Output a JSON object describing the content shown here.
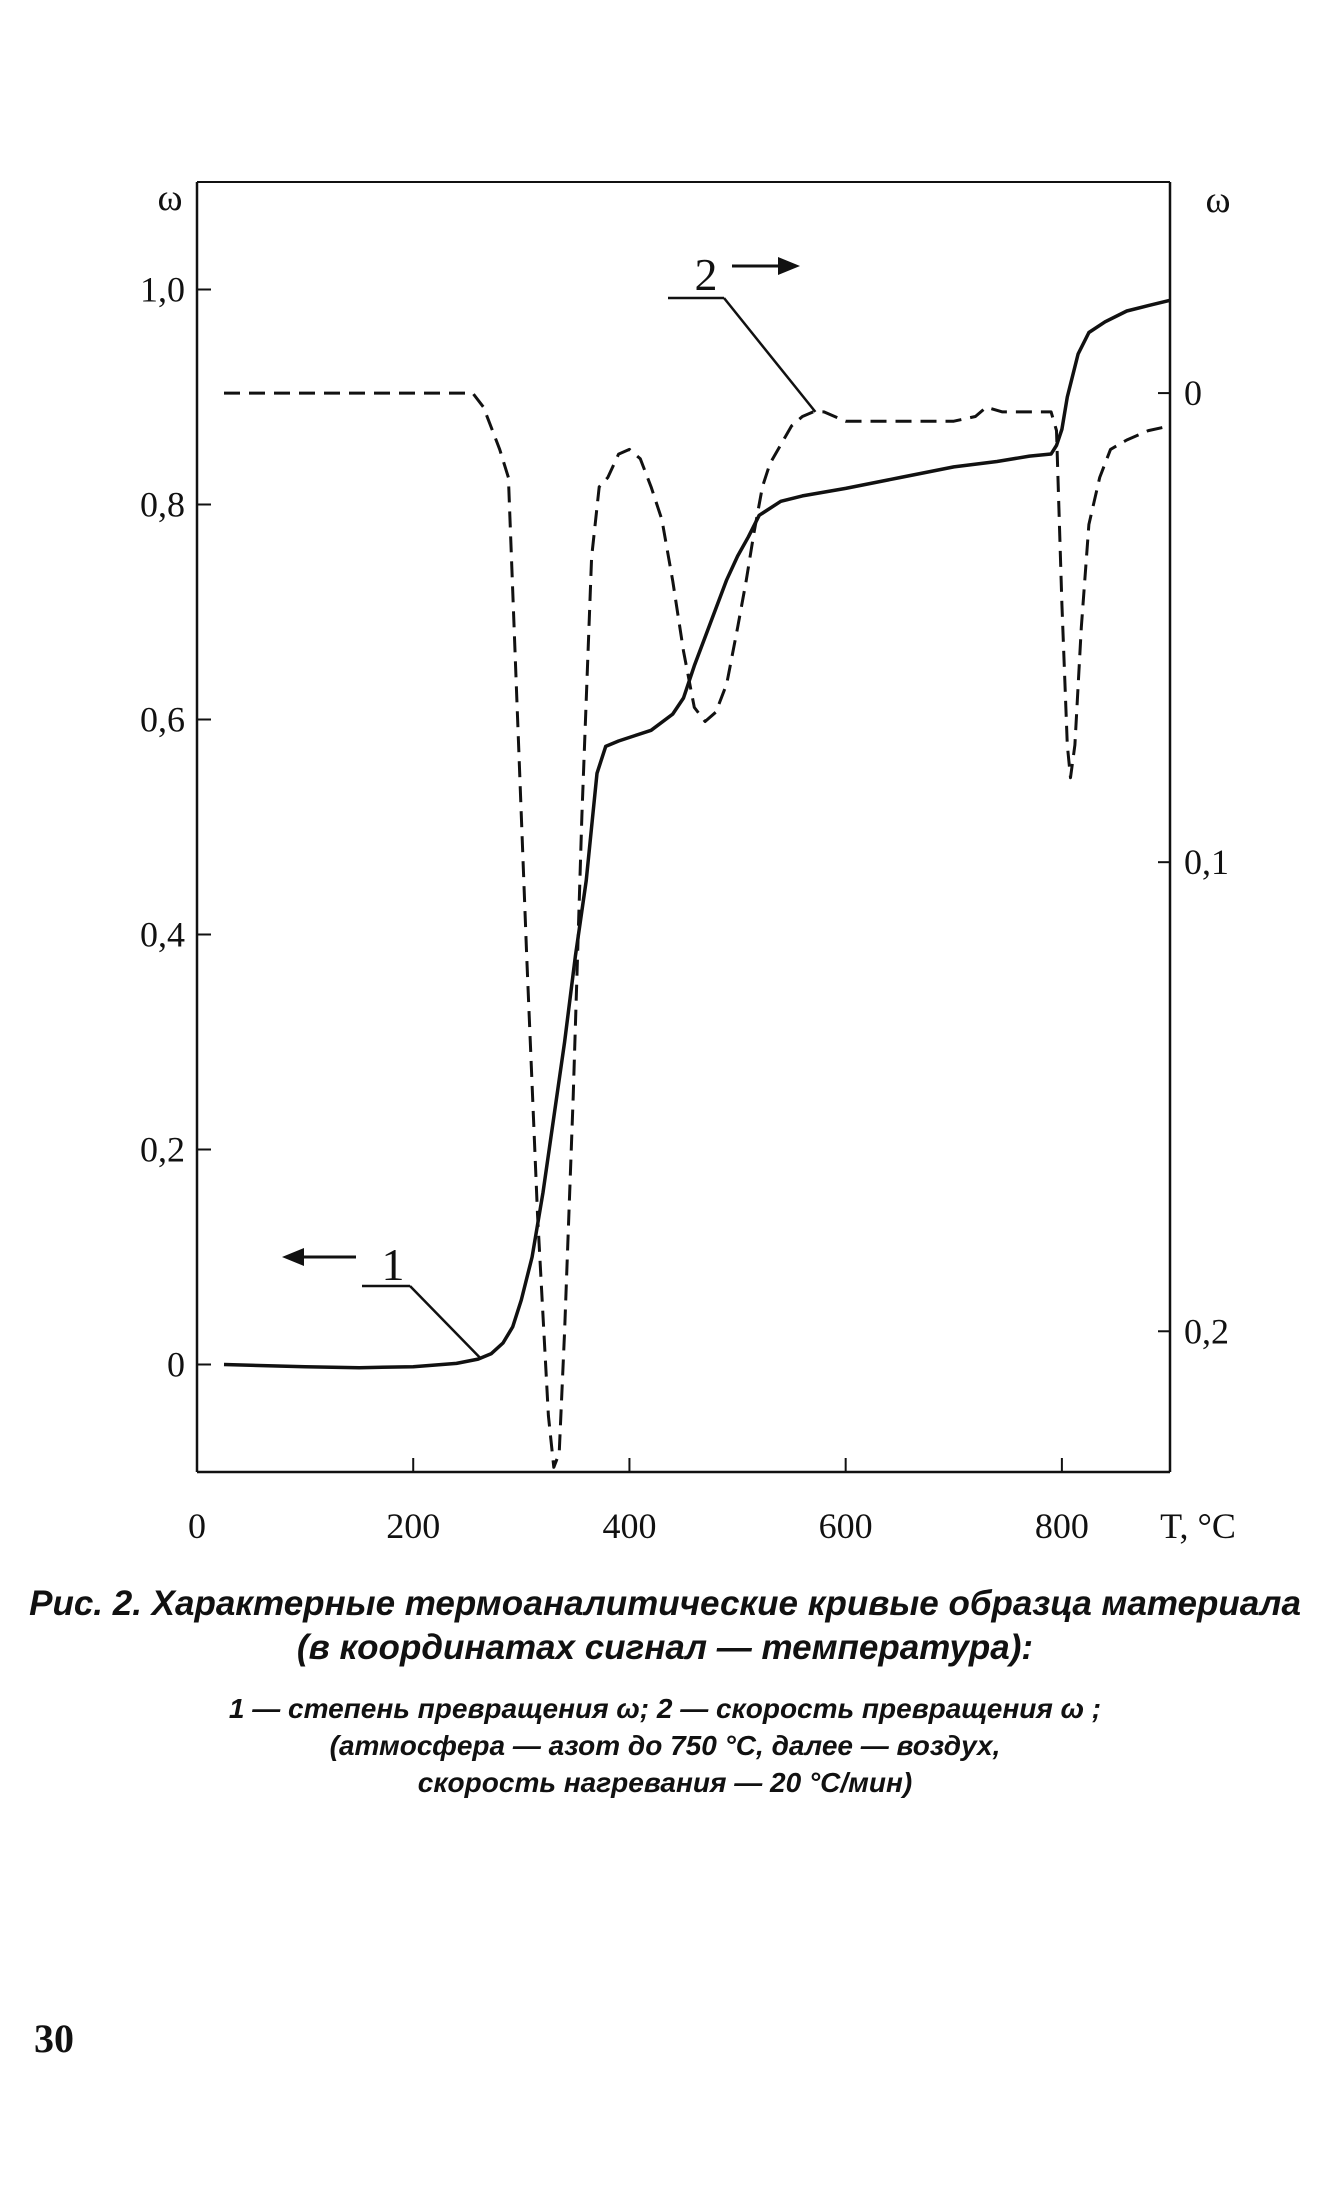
{
  "chart_data": {
    "type": "line",
    "title": "",
    "xlabel": "T, °C",
    "ylabel_left": "ω",
    "ylabel_right": "ω",
    "x_ticks": [
      "0",
      "200",
      "400",
      "600",
      "800"
    ],
    "y_left_ticks": [
      "0",
      "0,2",
      "0,4",
      "0,6",
      "0,8",
      "1,0"
    ],
    "y_right_ticks": [
      "0",
      "0,1",
      "0,2"
    ],
    "xlim": [
      0,
      900
    ],
    "ylim_left": [
      -0.1,
      1.1
    ],
    "ylim_right": [
      0.23,
      -0.045
    ],
    "right_axis_inverted": true,
    "grid": false,
    "series": [
      {
        "label": "1",
        "axis": "left",
        "style": "solid",
        "arrow": "left",
        "x": [
          25,
          100,
          150,
          200,
          240,
          260,
          272,
          283,
          292,
          300,
          310,
          320,
          330,
          340,
          350,
          360,
          365,
          370,
          378,
          390,
          405,
          420,
          440,
          450,
          460,
          475,
          490,
          500,
          510,
          520,
          540,
          560,
          600,
          650,
          700,
          740,
          770,
          790,
          795,
          800,
          805,
          815,
          825,
          840,
          860,
          880,
          900
        ],
        "y": [
          0.0,
          -0.002,
          -0.003,
          -0.002,
          0.001,
          0.005,
          0.01,
          0.02,
          0.035,
          0.06,
          0.1,
          0.16,
          0.23,
          0.3,
          0.38,
          0.45,
          0.5,
          0.55,
          0.575,
          0.58,
          0.585,
          0.59,
          0.605,
          0.62,
          0.65,
          0.69,
          0.73,
          0.752,
          0.77,
          0.79,
          0.803,
          0.808,
          0.815,
          0.825,
          0.835,
          0.84,
          0.845,
          0.847,
          0.855,
          0.87,
          0.9,
          0.94,
          0.96,
          0.97,
          0.98,
          0.985,
          0.99
        ]
      },
      {
        "label": "2",
        "axis": "right",
        "style": "dashed",
        "arrow": "right",
        "x": [
          25,
          100,
          150,
          200,
          250,
          255,
          265,
          280,
          288,
          295,
          305,
          315,
          325,
          330,
          335,
          340,
          348,
          356,
          365,
          372,
          380,
          390,
          400,
          410,
          420,
          430,
          440,
          450,
          460,
          470,
          480,
          490,
          500,
          508,
          515,
          523,
          530,
          540,
          550,
          560,
          570,
          580,
          600,
          650,
          700,
          720,
          730,
          745,
          760,
          780,
          790,
          795,
          800,
          805,
          808,
          812,
          818,
          825,
          835,
          845,
          860,
          880,
          900
        ],
        "y": [
          0.0,
          0.0,
          0.0,
          0.0,
          0.0,
          0.0,
          0.003,
          0.012,
          0.018,
          0.06,
          0.12,
          0.175,
          0.218,
          0.229,
          0.226,
          0.2,
          0.15,
          0.09,
          0.035,
          0.02,
          0.018,
          0.013,
          0.012,
          0.014,
          0.02,
          0.027,
          0.04,
          0.055,
          0.067,
          0.07,
          0.068,
          0.062,
          0.05,
          0.04,
          0.03,
          0.02,
          0.015,
          0.011,
          0.007,
          0.005,
          0.004,
          0.004,
          0.006,
          0.006,
          0.006,
          0.005,
          0.003,
          0.004,
          0.004,
          0.004,
          0.004,
          0.008,
          0.045,
          0.075,
          0.082,
          0.075,
          0.05,
          0.028,
          0.018,
          0.012,
          0.01,
          0.008,
          0.007
        ]
      }
    ]
  },
  "caption": {
    "title_lines": [
      "Рис. 2. Характерные термоаналитические кривые образца материала",
      "(в координатах сигнал — температура):"
    ],
    "note_lines": [
      "1 — степень превращения ω; 2 — скорость превращения ω ;",
      "(атмосфера — азот до 750 °C, далее — воздух,",
      "скорость нагревания — 20 °C/мин)"
    ]
  },
  "page_number": "30"
}
